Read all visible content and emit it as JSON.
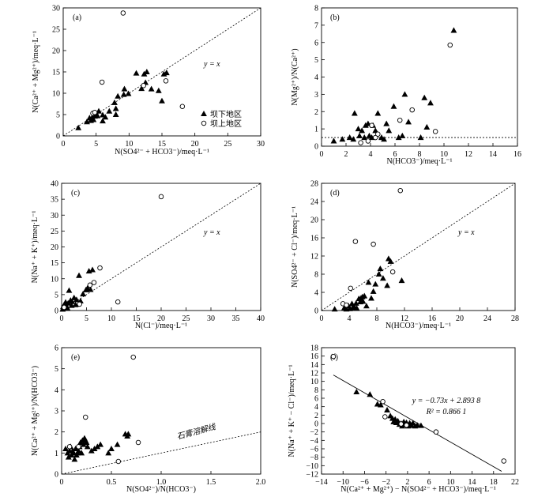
{
  "chart_data": [
    {
      "id": "a",
      "type": "scatter",
      "panel_label": "(a)",
      "xlabel": "N(SO4²⁻ + HCO3⁻)/meq·L⁻¹",
      "ylabel": "N(Ca²⁺ + Mg²⁺)/meq·L⁻¹",
      "xlim": [
        0,
        30
      ],
      "ylim": [
        0,
        30
      ],
      "xticks": [
        0,
        5,
        10,
        15,
        20,
        25,
        30
      ],
      "yticks": [
        0,
        5,
        10,
        15,
        20,
        25,
        30
      ],
      "annotation": "y = x",
      "reference_line": {
        "type": "identity",
        "style": "dotted"
      },
      "legend": {
        "position": "right",
        "entries": [
          "坝下地区",
          "坝上地区"
        ]
      },
      "series": [
        {
          "name": "坝下地区",
          "marker": "triangle",
          "points": [
            [
              2.3,
              1.9
            ],
            [
              3.6,
              3.3
            ],
            [
              4.0,
              4.2
            ],
            [
              4.2,
              3.6
            ],
            [
              4.4,
              4.3
            ],
            [
              4.6,
              3.8
            ],
            [
              4.8,
              4.6
            ],
            [
              5.0,
              5.3
            ],
            [
              5.2,
              4.7
            ],
            [
              5.4,
              5.8
            ],
            [
              6.0,
              4.9
            ],
            [
              6.4,
              4.4
            ],
            [
              6.0,
              3.5
            ],
            [
              7.0,
              5.8
            ],
            [
              7.8,
              7.8
            ],
            [
              8.0,
              6.4
            ],
            [
              8.0,
              5.0
            ],
            [
              8.3,
              9.3
            ],
            [
              9.3,
              11.0
            ],
            [
              9.2,
              9.7
            ],
            [
              9.9,
              9.9
            ],
            [
              11.1,
              14.7
            ],
            [
              11.9,
              11.1
            ],
            [
              12.3,
              14.5
            ],
            [
              12.7,
              15.0
            ],
            [
              12.5,
              12.5
            ],
            [
              13.4,
              11.0
            ],
            [
              14.5,
              10.6
            ],
            [
              15.0,
              8.2
            ],
            [
              15.3,
              14.5
            ],
            [
              15.7,
              14.8
            ]
          ]
        },
        {
          "name": "坝上地区",
          "marker": "circle",
          "points": [
            [
              9.1,
              28.8
            ],
            [
              5.9,
              12.6
            ],
            [
              4.5,
              5.3
            ],
            [
              4.8,
              5.5
            ],
            [
              12.2,
              11.8
            ],
            [
              15.6,
              12.9
            ],
            [
              18.1,
              6.9
            ]
          ]
        }
      ]
    },
    {
      "id": "b",
      "type": "scatter",
      "panel_label": "(b)",
      "xlabel": "N(HCO3⁻)/meq·L⁻¹",
      "ylabel": "N(Mg²⁺)/N(Ca²⁺)",
      "xlim": [
        0,
        16
      ],
      "ylim": [
        0,
        8
      ],
      "xticks": [
        0,
        2,
        4,
        6,
        8,
        10,
        12,
        14,
        16
      ],
      "yticks": [
        0,
        1,
        2,
        3,
        4,
        5,
        6,
        7,
        8
      ],
      "reference_line": {
        "type": "horizontal",
        "y": 0.5,
        "style": "dotted"
      },
      "series": [
        {
          "name": "坝下地区",
          "marker": "triangle",
          "points": [
            [
              1.0,
              0.3
            ],
            [
              1.7,
              0.4
            ],
            [
              2.3,
              0.5
            ],
            [
              2.6,
              0.4
            ],
            [
              2.7,
              1.9
            ],
            [
              3.0,
              1.0
            ],
            [
              3.1,
              0.6
            ],
            [
              3.3,
              0.9
            ],
            [
              3.5,
              0.5
            ],
            [
              3.6,
              1.2
            ],
            [
              3.8,
              1.3
            ],
            [
              3.9,
              0.6
            ],
            [
              4.1,
              0.5
            ],
            [
              4.2,
              1.2
            ],
            [
              4.4,
              0.9
            ],
            [
              4.6,
              1.9
            ],
            [
              4.9,
              0.5
            ],
            [
              5.1,
              0.4
            ],
            [
              5.3,
              1.3
            ],
            [
              5.5,
              0.9
            ],
            [
              5.9,
              2.3
            ],
            [
              6.3,
              0.5
            ],
            [
              6.6,
              0.6
            ],
            [
              6.8,
              3.0
            ],
            [
              7.1,
              1.4
            ],
            [
              8.1,
              0.5
            ],
            [
              8.4,
              2.8
            ],
            [
              8.6,
              1.1
            ],
            [
              8.9,
              2.5
            ],
            [
              10.8,
              6.7
            ]
          ]
        },
        {
          "name": "坝上地区",
          "marker": "circle",
          "points": [
            [
              3.2,
              0.2
            ],
            [
              3.8,
              0.3
            ],
            [
              4.1,
              1.2
            ],
            [
              4.4,
              0.5
            ],
            [
              4.6,
              0.7
            ],
            [
              6.4,
              1.5
            ],
            [
              7.4,
              2.1
            ],
            [
              9.3,
              0.85
            ],
            [
              10.5,
              5.85
            ]
          ]
        }
      ]
    },
    {
      "id": "c",
      "type": "scatter",
      "panel_label": "(c)",
      "xlabel": "N(Cl⁻)/meq·L⁻¹",
      "ylabel": "N(Na⁺ + K⁺)/meq·L⁻¹",
      "xlim": [
        0,
        40
      ],
      "ylim": [
        0,
        40
      ],
      "xticks": [
        0,
        5,
        10,
        15,
        20,
        25,
        30,
        35,
        40
      ],
      "yticks": [
        0,
        5,
        10,
        15,
        20,
        25,
        30,
        35,
        40
      ],
      "annotation": "y = x",
      "reference_line": {
        "type": "identity",
        "style": "dotted"
      },
      "series": [
        {
          "name": "坝下地区",
          "marker": "triangle",
          "points": [
            [
              0.2,
              0.4
            ],
            [
              0.3,
              1.2
            ],
            [
              0.4,
              0.8
            ],
            [
              0.5,
              1.8
            ],
            [
              0.7,
              1.0
            ],
            [
              0.8,
              2.6
            ],
            [
              1.0,
              1.3
            ],
            [
              1.2,
              0.7
            ],
            [
              1.3,
              2.3
            ],
            [
              1.5,
              6.3
            ],
            [
              1.8,
              3.2
            ],
            [
              2.0,
              1.6
            ],
            [
              2.1,
              2.8
            ],
            [
              2.5,
              4.0
            ],
            [
              2.8,
              1.8
            ],
            [
              3.0,
              3.4
            ],
            [
              3.5,
              11.0
            ],
            [
              3.8,
              3.0
            ],
            [
              4.3,
              5.2
            ],
            [
              4.9,
              6.5
            ],
            [
              5.2,
              7.0
            ],
            [
              5.5,
              12.4
            ],
            [
              5.8,
              6.6
            ],
            [
              6.2,
              12.8
            ]
          ]
        },
        {
          "name": "坝上地区",
          "marker": "circle",
          "points": [
            [
              0.5,
              1.0
            ],
            [
              3.6,
              2.0
            ],
            [
              5.7,
              8.0
            ],
            [
              6.5,
              8.8
            ],
            [
              7.7,
              13.4
            ],
            [
              11.3,
              2.7
            ],
            [
              20.0,
              35.8
            ]
          ]
        }
      ]
    },
    {
      "id": "d",
      "type": "scatter",
      "panel_label": "(d)",
      "xlabel": "N(HCO3⁻)/meq·L⁻¹",
      "ylabel": "N(SO4²⁻ + Cl⁻)/meq·L⁻¹",
      "xlim": [
        0,
        28
      ],
      "ylim": [
        0,
        28
      ],
      "xticks": [
        0,
        4,
        8,
        12,
        16,
        20,
        24,
        28
      ],
      "yticks": [
        0,
        4,
        8,
        12,
        16,
        20,
        24,
        28
      ],
      "annotation": "y = x",
      "reference_line": {
        "type": "identity",
        "style": "dotted"
      },
      "series": [
        {
          "name": "坝下地区",
          "marker": "triangle",
          "points": [
            [
              1.9,
              0.3
            ],
            [
              3.3,
              0.6
            ],
            [
              3.6,
              0.3
            ],
            [
              3.9,
              1.0
            ],
            [
              4.1,
              0.4
            ],
            [
              4.4,
              1.5
            ],
            [
              4.5,
              0.6
            ],
            [
              4.7,
              0.9
            ],
            [
              5.0,
              1.6
            ],
            [
              5.1,
              0.5
            ],
            [
              5.4,
              2.6
            ],
            [
              5.6,
              1.9
            ],
            [
              5.7,
              2.7
            ],
            [
              5.9,
              3.0
            ],
            [
              6.0,
              2.0
            ],
            [
              6.2,
              3.2
            ],
            [
              6.5,
              1.0
            ],
            [
              6.8,
              6.2
            ],
            [
              7.2,
              2.7
            ],
            [
              7.5,
              4.2
            ],
            [
              7.8,
              5.8
            ],
            [
              8.3,
              8.0
            ],
            [
              8.5,
              9.2
            ],
            [
              8.9,
              7.1
            ],
            [
              9.5,
              5.5
            ],
            [
              9.7,
              11.4
            ],
            [
              10.0,
              10.8
            ],
            [
              11.6,
              6.6
            ]
          ]
        },
        {
          "name": "坝上地区",
          "marker": "circle",
          "points": [
            [
              3.1,
              1.5
            ],
            [
              3.6,
              1.2
            ],
            [
              4.2,
              4.9
            ],
            [
              4.9,
              15.2
            ],
            [
              7.5,
              14.6
            ],
            [
              10.3,
              8.5
            ],
            [
              11.4,
              26.4
            ]
          ]
        }
      ]
    },
    {
      "id": "e",
      "type": "scatter",
      "panel_label": "(e)",
      "xlabel": "N(SO4²⁻)/N(HCO3⁻)",
      "ylabel": "N(Ca²⁺ + Mg²⁺)/N(HCO3⁻)",
      "xlim": [
        0,
        2.0
      ],
      "ylim": [
        0,
        6
      ],
      "xticks": [
        0,
        0.5,
        1.0,
        1.5,
        2.0
      ],
      "xticklabels": [
        "0",
        "0.5",
        "1.0",
        "1.5",
        "2.0"
      ],
      "yticks": [
        0,
        1,
        2,
        3,
        4,
        5,
        6
      ],
      "annotation": "石膏溶解线",
      "reference_line": {
        "type": "line",
        "slope": 1,
        "intercept": 0,
        "style": "dotted"
      },
      "series": [
        {
          "name": "坝下地区",
          "marker": "triangle",
          "points": [
            [
              0.04,
              1.2
            ],
            [
              0.06,
              1.0
            ],
            [
              0.07,
              0.8
            ],
            [
              0.08,
              1.1
            ],
            [
              0.09,
              1.3
            ],
            [
              0.1,
              0.9
            ],
            [
              0.11,
              1.1
            ],
            [
              0.12,
              1.0
            ],
            [
              0.13,
              0.7
            ],
            [
              0.14,
              1.2
            ],
            [
              0.15,
              0.9
            ],
            [
              0.16,
              1.0
            ],
            [
              0.17,
              1.1
            ],
            [
              0.18,
              1.3
            ],
            [
              0.19,
              1.5
            ],
            [
              0.2,
              1.0
            ],
            [
              0.21,
              1.6
            ],
            [
              0.22,
              1.4
            ],
            [
              0.23,
              1.7
            ],
            [
              0.24,
              1.6
            ],
            [
              0.25,
              1.5
            ],
            [
              0.26,
              1.3
            ],
            [
              0.3,
              1.1
            ],
            [
              0.33,
              1.2
            ],
            [
              0.36,
              1.3
            ],
            [
              0.39,
              1.4
            ],
            [
              0.47,
              1.0
            ],
            [
              0.5,
              1.2
            ],
            [
              0.56,
              1.4
            ],
            [
              0.64,
              1.9
            ],
            [
              0.66,
              1.8
            ],
            [
              0.67,
              1.9
            ]
          ]
        },
        {
          "name": "坝上地区",
          "marker": "circle",
          "points": [
            [
              0.08,
              1.3
            ],
            [
              0.17,
              1.3
            ],
            [
              0.24,
              2.7
            ],
            [
              0.57,
              0.6
            ],
            [
              0.72,
              5.55
            ],
            [
              0.77,
              1.5
            ]
          ]
        }
      ]
    },
    {
      "id": "f",
      "type": "scatter",
      "panel_label": "(f)",
      "xlabel": "N(Ca²⁺ + Mg²⁺) − N(SO4²⁻ + HCO3⁻)/meq·L⁻¹",
      "ylabel": "N(Na⁺ + K⁺ − Cl⁻)/meq·L⁻¹",
      "xlim": [
        -14,
        22
      ],
      "ylim": [
        -12,
        18
      ],
      "xticks": [
        -14,
        -10,
        -6,
        -2,
        2,
        6,
        10,
        14,
        18,
        22
      ],
      "yticks": [
        -12,
        -10,
        -8,
        -6,
        -4,
        -2,
        0,
        2,
        4,
        6,
        8,
        10,
        12,
        14,
        16,
        18
      ],
      "equation": "y = −0.73x + 2.893 8",
      "r2_text": "R² = 0.866 1",
      "fit_line": {
        "slope": -0.73,
        "intercept": 2.8938,
        "x_range": [
          -11.8,
          19.5
        ]
      },
      "series": [
        {
          "name": "坝下地区",
          "marker": "triangle",
          "points": [
            [
              -7.5,
              7.5
            ],
            [
              -5.0,
              6.9
            ],
            [
              -3.6,
              4.6
            ],
            [
              -3.0,
              4.4
            ],
            [
              -1.8,
              3.2
            ],
            [
              -1.2,
              1.8
            ],
            [
              -0.8,
              1.2
            ],
            [
              -0.6,
              0.4
            ],
            [
              -0.3,
              1.0
            ],
            [
              -0.1,
              0.2
            ],
            [
              0.2,
              0.6
            ],
            [
              0.5,
              -0.2
            ],
            [
              0.8,
              0.0
            ],
            [
              1.0,
              -0.6
            ],
            [
              1.3,
              0.4
            ],
            [
              1.6,
              -0.3
            ],
            [
              1.8,
              0.2
            ],
            [
              2.1,
              -0.6
            ],
            [
              2.4,
              0.1
            ],
            [
              2.7,
              -0.5
            ],
            [
              3.0,
              0.1
            ],
            [
              3.4,
              -0.6
            ],
            [
              3.8,
              -0.4
            ],
            [
              4.5,
              -0.5
            ]
          ]
        },
        {
          "name": "坝上地区",
          "marker": "circle",
          "points": [
            [
              -11.8,
              15.9
            ],
            [
              -2.6,
              5.2
            ],
            [
              -2.2,
              1.6
            ],
            [
              0.8,
              -0.1
            ],
            [
              1.8,
              -0.4
            ],
            [
              7.3,
              -2.0
            ],
            [
              19.9,
              -8.9
            ]
          ]
        }
      ]
    }
  ]
}
